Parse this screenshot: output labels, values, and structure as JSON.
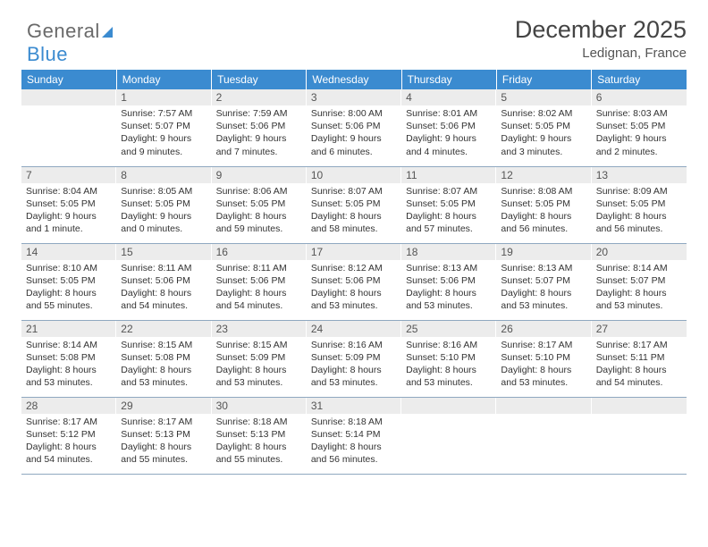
{
  "brand": {
    "name1": "General",
    "name2": "Blue"
  },
  "title": "December 2025",
  "location": "Ledignan, France",
  "colors": {
    "header_bg": "#3b8bd0",
    "header_text": "#ffffff",
    "daynum_bg": "#ececec",
    "daynum_text": "#555555",
    "body_text": "#333333",
    "rule": "#8fa8c0",
    "page_bg": "#ffffff"
  },
  "weekdays": [
    "Sunday",
    "Monday",
    "Tuesday",
    "Wednesday",
    "Thursday",
    "Friday",
    "Saturday"
  ],
  "first_weekday_offset": 1,
  "days": [
    {
      "n": 1,
      "sunrise": "7:57 AM",
      "sunset": "5:07 PM",
      "daylight": "9 hours and 9 minutes."
    },
    {
      "n": 2,
      "sunrise": "7:59 AM",
      "sunset": "5:06 PM",
      "daylight": "9 hours and 7 minutes."
    },
    {
      "n": 3,
      "sunrise": "8:00 AM",
      "sunset": "5:06 PM",
      "daylight": "9 hours and 6 minutes."
    },
    {
      "n": 4,
      "sunrise": "8:01 AM",
      "sunset": "5:06 PM",
      "daylight": "9 hours and 4 minutes."
    },
    {
      "n": 5,
      "sunrise": "8:02 AM",
      "sunset": "5:05 PM",
      "daylight": "9 hours and 3 minutes."
    },
    {
      "n": 6,
      "sunrise": "8:03 AM",
      "sunset": "5:05 PM",
      "daylight": "9 hours and 2 minutes."
    },
    {
      "n": 7,
      "sunrise": "8:04 AM",
      "sunset": "5:05 PM",
      "daylight": "9 hours and 1 minute."
    },
    {
      "n": 8,
      "sunrise": "8:05 AM",
      "sunset": "5:05 PM",
      "daylight": "9 hours and 0 minutes."
    },
    {
      "n": 9,
      "sunrise": "8:06 AM",
      "sunset": "5:05 PM",
      "daylight": "8 hours and 59 minutes."
    },
    {
      "n": 10,
      "sunrise": "8:07 AM",
      "sunset": "5:05 PM",
      "daylight": "8 hours and 58 minutes."
    },
    {
      "n": 11,
      "sunrise": "8:07 AM",
      "sunset": "5:05 PM",
      "daylight": "8 hours and 57 minutes."
    },
    {
      "n": 12,
      "sunrise": "8:08 AM",
      "sunset": "5:05 PM",
      "daylight": "8 hours and 56 minutes."
    },
    {
      "n": 13,
      "sunrise": "8:09 AM",
      "sunset": "5:05 PM",
      "daylight": "8 hours and 56 minutes."
    },
    {
      "n": 14,
      "sunrise": "8:10 AM",
      "sunset": "5:05 PM",
      "daylight": "8 hours and 55 minutes."
    },
    {
      "n": 15,
      "sunrise": "8:11 AM",
      "sunset": "5:06 PM",
      "daylight": "8 hours and 54 minutes."
    },
    {
      "n": 16,
      "sunrise": "8:11 AM",
      "sunset": "5:06 PM",
      "daylight": "8 hours and 54 minutes."
    },
    {
      "n": 17,
      "sunrise": "8:12 AM",
      "sunset": "5:06 PM",
      "daylight": "8 hours and 53 minutes."
    },
    {
      "n": 18,
      "sunrise": "8:13 AM",
      "sunset": "5:06 PM",
      "daylight": "8 hours and 53 minutes."
    },
    {
      "n": 19,
      "sunrise": "8:13 AM",
      "sunset": "5:07 PM",
      "daylight": "8 hours and 53 minutes."
    },
    {
      "n": 20,
      "sunrise": "8:14 AM",
      "sunset": "5:07 PM",
      "daylight": "8 hours and 53 minutes."
    },
    {
      "n": 21,
      "sunrise": "8:14 AM",
      "sunset": "5:08 PM",
      "daylight": "8 hours and 53 minutes."
    },
    {
      "n": 22,
      "sunrise": "8:15 AM",
      "sunset": "5:08 PM",
      "daylight": "8 hours and 53 minutes."
    },
    {
      "n": 23,
      "sunrise": "8:15 AM",
      "sunset": "5:09 PM",
      "daylight": "8 hours and 53 minutes."
    },
    {
      "n": 24,
      "sunrise": "8:16 AM",
      "sunset": "5:09 PM",
      "daylight": "8 hours and 53 minutes."
    },
    {
      "n": 25,
      "sunrise": "8:16 AM",
      "sunset": "5:10 PM",
      "daylight": "8 hours and 53 minutes."
    },
    {
      "n": 26,
      "sunrise": "8:17 AM",
      "sunset": "5:10 PM",
      "daylight": "8 hours and 53 minutes."
    },
    {
      "n": 27,
      "sunrise": "8:17 AM",
      "sunset": "5:11 PM",
      "daylight": "8 hours and 54 minutes."
    },
    {
      "n": 28,
      "sunrise": "8:17 AM",
      "sunset": "5:12 PM",
      "daylight": "8 hours and 54 minutes."
    },
    {
      "n": 29,
      "sunrise": "8:17 AM",
      "sunset": "5:13 PM",
      "daylight": "8 hours and 55 minutes."
    },
    {
      "n": 30,
      "sunrise": "8:18 AM",
      "sunset": "5:13 PM",
      "daylight": "8 hours and 55 minutes."
    },
    {
      "n": 31,
      "sunrise": "8:18 AM",
      "sunset": "5:14 PM",
      "daylight": "8 hours and 56 minutes."
    }
  ],
  "labels": {
    "sunrise_prefix": "Sunrise: ",
    "sunset_prefix": "Sunset: ",
    "daylight_prefix": "Daylight: "
  }
}
